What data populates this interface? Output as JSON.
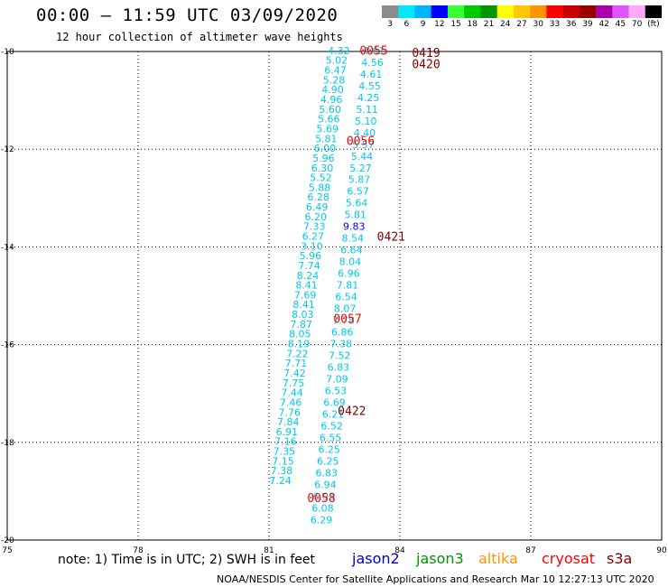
{
  "header": {
    "title": "00:00 — 11:59 UTC 03/09/2020",
    "subtitle": "12 hour collection of altimeter wave heights"
  },
  "colorbar": {
    "labels": [
      "3",
      "6",
      "9",
      "12",
      "15",
      "18",
      "21",
      "24",
      "27",
      "30",
      "33",
      "36",
      "39",
      "42",
      "45",
      "70",
      "(ft)"
    ],
    "colors": [
      "#8c8c8c",
      "#00e8ff",
      "#00b4ff",
      "#0000ff",
      "#39ff39",
      "#00c800",
      "#009600",
      "#ffff00",
      "#ffc800",
      "#ff9600",
      "#ff0000",
      "#c80000",
      "#960000",
      "#aa00aa",
      "#dd55ff",
      "#ffaaff",
      "#000000"
    ]
  },
  "footer": {
    "note": "note: 1) Time is in UTC; 2) SWH is in feet",
    "credit": "NOAA/NESDIS Center for Satellite Applications and Research   Mar 10 12:27:13 UTC 2020",
    "satellites": [
      {
        "name": "jason2",
        "color": "#0000cc"
      },
      {
        "name": "jason3",
        "color": "#009600"
      },
      {
        "name": "altika",
        "color": "#ff9600"
      },
      {
        "name": "cryosat",
        "color": "#ff0000"
      },
      {
        "name": "s3a",
        "color": "#800000"
      }
    ]
  },
  "chart_data": {
    "type": "scatter",
    "xlim": [
      75,
      90
    ],
    "ylim": [
      -20,
      -10
    ],
    "x_ticks": [
      "75",
      "78",
      "81",
      "84",
      "87",
      "90"
    ],
    "y_ticks": [
      "-10",
      "-12",
      "-14",
      "-16",
      "-18",
      "-20"
    ],
    "grid": true,
    "track_labels": [
      {
        "text": "0055",
        "x": 83.4,
        "y": -9.97,
        "color": "#ff0000"
      },
      {
        "text": "0056",
        "x": 83.1,
        "y": -11.82,
        "color": "#ff0000"
      },
      {
        "text": "0057",
        "x": 82.8,
        "y": -15.46,
        "color": "#ff0000"
      },
      {
        "text": "0058",
        "x": 82.2,
        "y": -19.13,
        "color": "#ff0000"
      },
      {
        "text": "0419",
        "x": 84.6,
        "y": -10.02,
        "color": "#800000"
      },
      {
        "text": "0420",
        "x": 84.6,
        "y": -10.25,
        "color": "#800000"
      },
      {
        "text": "0421",
        "x": 83.8,
        "y": -13.78,
        "color": "#800000"
      },
      {
        "text": "0422",
        "x": 82.9,
        "y": -17.35,
        "color": "#800000"
      }
    ],
    "series": [
      {
        "name": "cryosat",
        "color": "#00c8f0",
        "points": [
          {
            "x": 82.6,
            "y": -9.98,
            "v": "4.32"
          },
          {
            "x": 82.55,
            "y": -10.18,
            "v": "5.02"
          },
          {
            "x": 82.52,
            "y": -10.38,
            "v": "6.47"
          },
          {
            "x": 82.49,
            "y": -10.58,
            "v": "5.28"
          },
          {
            "x": 82.46,
            "y": -10.78,
            "v": "4.90"
          },
          {
            "x": 82.43,
            "y": -10.98,
            "v": "4.96"
          },
          {
            "x": 82.4,
            "y": -11.18,
            "v": "5.60"
          },
          {
            "x": 82.37,
            "y": -11.38,
            "v": "5.66"
          },
          {
            "x": 82.34,
            "y": -11.58,
            "v": "5.69"
          },
          {
            "x": 82.31,
            "y": -11.78,
            "v": "5.81"
          },
          {
            "x": 82.28,
            "y": -11.98,
            "v": "6.00"
          },
          {
            "x": 82.25,
            "y": -12.18,
            "v": "5.96"
          },
          {
            "x": 82.22,
            "y": -12.38,
            "v": "6.30"
          },
          {
            "x": 82.19,
            "y": -12.58,
            "v": "5.52"
          },
          {
            "x": 82.16,
            "y": -12.78,
            "v": "5.88"
          },
          {
            "x": 82.13,
            "y": -12.98,
            "v": "6.28"
          },
          {
            "x": 82.1,
            "y": -13.18,
            "v": "6.49"
          },
          {
            "x": 82.07,
            "y": -13.38,
            "v": "6.20"
          },
          {
            "x": 82.04,
            "y": -13.58,
            "v": "7.33"
          },
          {
            "x": 82.01,
            "y": -13.78,
            "v": "6.27"
          },
          {
            "x": 81.98,
            "y": -13.98,
            "v": "3.10"
          },
          {
            "x": 81.95,
            "y": -14.18,
            "v": "5.96"
          },
          {
            "x": 81.92,
            "y": -14.38,
            "v": "7.74"
          },
          {
            "x": 81.89,
            "y": -14.58,
            "v": "8.24"
          },
          {
            "x": 81.86,
            "y": -14.78,
            "v": "8.41"
          },
          {
            "x": 81.83,
            "y": -14.98,
            "v": "7.69"
          },
          {
            "x": 81.8,
            "y": -15.18,
            "v": "8.41"
          },
          {
            "x": 81.77,
            "y": -15.38,
            "v": "8.03"
          },
          {
            "x": 81.74,
            "y": -15.58,
            "v": "7.87"
          },
          {
            "x": 81.71,
            "y": -15.78,
            "v": "8.05"
          },
          {
            "x": 81.68,
            "y": -15.98,
            "v": "8.19"
          },
          {
            "x": 81.65,
            "y": -16.18,
            "v": "7.22"
          },
          {
            "x": 81.62,
            "y": -16.38,
            "v": "7.71"
          },
          {
            "x": 81.59,
            "y": -16.58,
            "v": "7.42"
          },
          {
            "x": 81.56,
            "y": -16.78,
            "v": "7.75"
          },
          {
            "x": 81.53,
            "y": -16.98,
            "v": "7.44"
          },
          {
            "x": 81.5,
            "y": -17.18,
            "v": "7.46"
          },
          {
            "x": 81.47,
            "y": -17.38,
            "v": "7.76"
          },
          {
            "x": 81.44,
            "y": -17.58,
            "v": "7.84"
          },
          {
            "x": 81.41,
            "y": -17.78,
            "v": "6.91"
          },
          {
            "x": 81.38,
            "y": -17.98,
            "v": "7.16"
          },
          {
            "x": 81.35,
            "y": -18.18,
            "v": "7.35"
          },
          {
            "x": 81.32,
            "y": -18.38,
            "v": "7.15"
          },
          {
            "x": 81.29,
            "y": -18.58,
            "v": "7.38"
          },
          {
            "x": 81.26,
            "y": -18.78,
            "v": "7.24"
          }
        ]
      },
      {
        "name": "s3a",
        "color": "#00c8f0",
        "points": [
          {
            "x": 83.4,
            "y": -9.98,
            "v": "4.61"
          },
          {
            "x": 83.37,
            "y": -10.22,
            "v": "4.56"
          },
          {
            "x": 83.34,
            "y": -10.46,
            "v": "4.61"
          },
          {
            "x": 83.31,
            "y": -10.7,
            "v": "4.55"
          },
          {
            "x": 83.28,
            "y": -10.94,
            "v": "4.25"
          },
          {
            "x": 83.25,
            "y": -11.18,
            "v": "5.11"
          },
          {
            "x": 83.22,
            "y": -11.42,
            "v": "5.10"
          },
          {
            "x": 83.19,
            "y": -11.66,
            "v": "4.40"
          },
          {
            "x": 83.16,
            "y": -11.9,
            "v": "5.57"
          },
          {
            "x": 83.13,
            "y": -12.14,
            "v": "5.44"
          },
          {
            "x": 83.1,
            "y": -12.38,
            "v": "5.27"
          },
          {
            "x": 83.07,
            "y": -12.62,
            "v": "5.87"
          },
          {
            "x": 83.04,
            "y": -12.86,
            "v": "6.57"
          },
          {
            "x": 83.01,
            "y": -13.1,
            "v": "5.64"
          },
          {
            "x": 82.98,
            "y": -13.34,
            "v": "5.81"
          },
          {
            "x": 82.95,
            "y": -13.58,
            "v": "9.83"
          },
          {
            "x": 82.92,
            "y": -13.82,
            "v": "8.54"
          },
          {
            "x": 82.89,
            "y": -14.06,
            "v": "6.64"
          },
          {
            "x": 82.86,
            "y": -14.3,
            "v": "8.04"
          },
          {
            "x": 82.83,
            "y": -14.54,
            "v": "6.96"
          },
          {
            "x": 82.8,
            "y": -14.78,
            "v": "7.81"
          },
          {
            "x": 82.77,
            "y": -15.02,
            "v": "6.54"
          },
          {
            "x": 82.74,
            "y": -15.26,
            "v": "8.07"
          },
          {
            "x": 82.71,
            "y": -15.5,
            "v": "7.78"
          },
          {
            "x": 82.68,
            "y": -15.74,
            "v": "6.86"
          },
          {
            "x": 82.65,
            "y": -15.98,
            "v": "7.38"
          },
          {
            "x": 82.62,
            "y": -16.22,
            "v": "7.52"
          },
          {
            "x": 82.59,
            "y": -16.46,
            "v": "6.83"
          },
          {
            "x": 82.56,
            "y": -16.7,
            "v": "7.09"
          },
          {
            "x": 82.53,
            "y": -16.94,
            "v": "6.53"
          },
          {
            "x": 82.5,
            "y": -17.18,
            "v": "6.69"
          },
          {
            "x": 82.47,
            "y": -17.42,
            "v": "6.21"
          },
          {
            "x": 82.44,
            "y": -17.66,
            "v": "6.52"
          },
          {
            "x": 82.41,
            "y": -17.9,
            "v": "6.55"
          },
          {
            "x": 82.38,
            "y": -18.14,
            "v": "6.25"
          },
          {
            "x": 82.35,
            "y": -18.38,
            "v": "6.25"
          },
          {
            "x": 82.32,
            "y": -18.62,
            "v": "6.83"
          },
          {
            "x": 82.29,
            "y": -18.86,
            "v": "6.94"
          },
          {
            "x": 82.26,
            "y": -19.1,
            "v": "6.93"
          },
          {
            "x": 82.23,
            "y": -19.34,
            "v": "6.08"
          },
          {
            "x": 82.2,
            "y": -19.58,
            "v": "6.29"
          }
        ]
      }
    ]
  }
}
